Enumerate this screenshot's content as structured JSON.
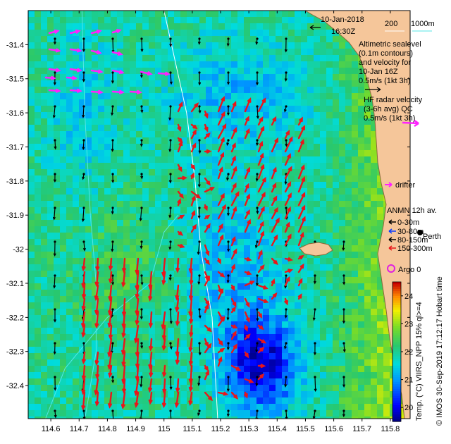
{
  "header": {
    "date": "10-Jan-2018",
    "time": "16:30Z"
  },
  "isobaths": {
    "label_a": "200",
    "label_b": "1000m"
  },
  "legend": {
    "altimetric_line1": "Altimetric sealevel",
    "altimetric_line2": "(0.1m contours)",
    "altimetric_line3": "and velocity for",
    "altimetric_line4": "10-Jan 16Z",
    "altimetric_scale": "0.5m/s (1kt 3h)",
    "hf_line1": "HF radar velocity",
    "hf_line2": "(3-6h avg) QC",
    "hf_scale": "0.5m/s (1kt 3h)",
    "drifter": "drifter",
    "anmn_title": "ANMN 12h av.",
    "anmn_items": [
      "0-30m",
      "30-80m",
      "80-150m",
      "150-300m"
    ],
    "place": "Perth",
    "argo": "Argo 0"
  },
  "colorbar": {
    "label": "Temp. (°C) VIIRS_NPP 15% ql>=4",
    "ticks": [
      "24",
      "23",
      "22",
      "21",
      "20"
    ],
    "min": 19.5,
    "max": 24.5
  },
  "credit": "© IMOS 30-Sep-2019 17:12:17 Hobart time",
  "axes": {
    "lon_ticks": [
      "114.6",
      "114.7",
      "114.8",
      "114.9",
      "115",
      "115.1",
      "115.2",
      "115.3",
      "115.4",
      "115.5",
      "115.6",
      "115.7",
      "115.8"
    ],
    "lat_ticks": [
      "-31.4",
      "-31.5",
      "-31.6",
      "-31.7",
      "-31.8",
      "-31.9",
      "-32",
      "-32.1",
      "-32.2",
      "-32.3",
      "-32.4"
    ],
    "lon_range": [
      114.52,
      115.87
    ],
    "lat_range": [
      -32.497,
      -31.3
    ]
  },
  "colors": {
    "land": "#f5c69a",
    "coast": "#8a6a3a",
    "hf_vector": "#e8161a",
    "altimetry_vector": "#000000",
    "drifter": "#ff22ff",
    "anmn_0_30": "#000000",
    "anmn_30_80": "#0a3cff",
    "anmn_80_150": "#000000",
    "anmn_150_300": "#e8161a",
    "argo": "#e020e0",
    "isobath_200": "#ffffff",
    "isobath_1000": "#55e6e6"
  }
}
